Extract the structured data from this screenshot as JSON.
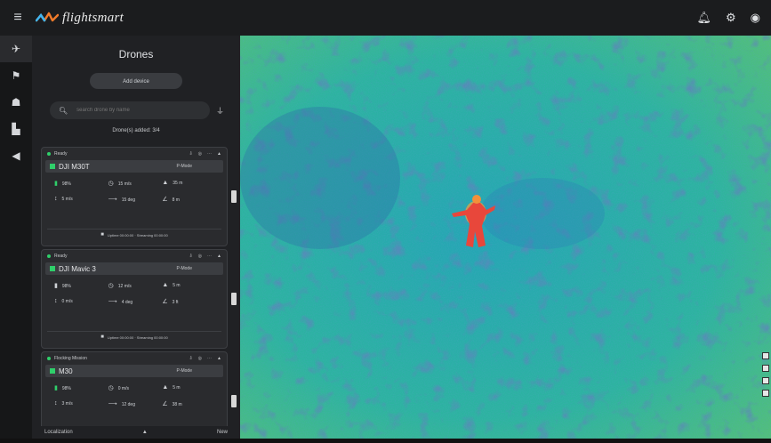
{
  "brand": {
    "name": "flightsmart"
  },
  "topbar": {
    "icons": [
      "menu-icon",
      "bell-icon",
      "settings-icon",
      "user-icon"
    ]
  },
  "rail": {
    "items": [
      "drone-icon",
      "flag-icon",
      "user-icon",
      "building-icon",
      "megaphone-icon"
    ]
  },
  "panel": {
    "title": "Drones",
    "add_button": "Add device",
    "search_placeholder": "search drone by name",
    "count_text": "Drone(s) added: 3/4"
  },
  "cards": [
    {
      "status": "Ready",
      "name": "DJI M30T",
      "mode": "P-Mode",
      "stats": [
        "98%",
        "15 m/s",
        "35 m",
        "5 m/s",
        "15 deg",
        "8 m"
      ],
      "footer": "Uptime 00:00:00 · Streaming 00:00:00"
    },
    {
      "status": "Ready",
      "name": "DJI Mavic 3",
      "mode": "P-Mode",
      "stats": [
        "98%",
        "12 m/s",
        "5 m",
        "0 m/s",
        "4 deg",
        "3 ft"
      ],
      "footer": "Uptime 00:00:00 · Streaming 00:00:00"
    },
    {
      "status": "Flocking Mission",
      "name": "M30",
      "mode": "P-Mode",
      "stats": [
        "98%",
        "0 m/s",
        "5 m",
        "3 m/s",
        "12 deg",
        "38 m"
      ],
      "footer": ""
    }
  ],
  "panel_footer": {
    "left": "Localization",
    "right": "New"
  },
  "colors": {
    "accent": "#2fcf6a",
    "thermal_person": "#e8473b",
    "thermal_bg": "#2bb3a0"
  }
}
